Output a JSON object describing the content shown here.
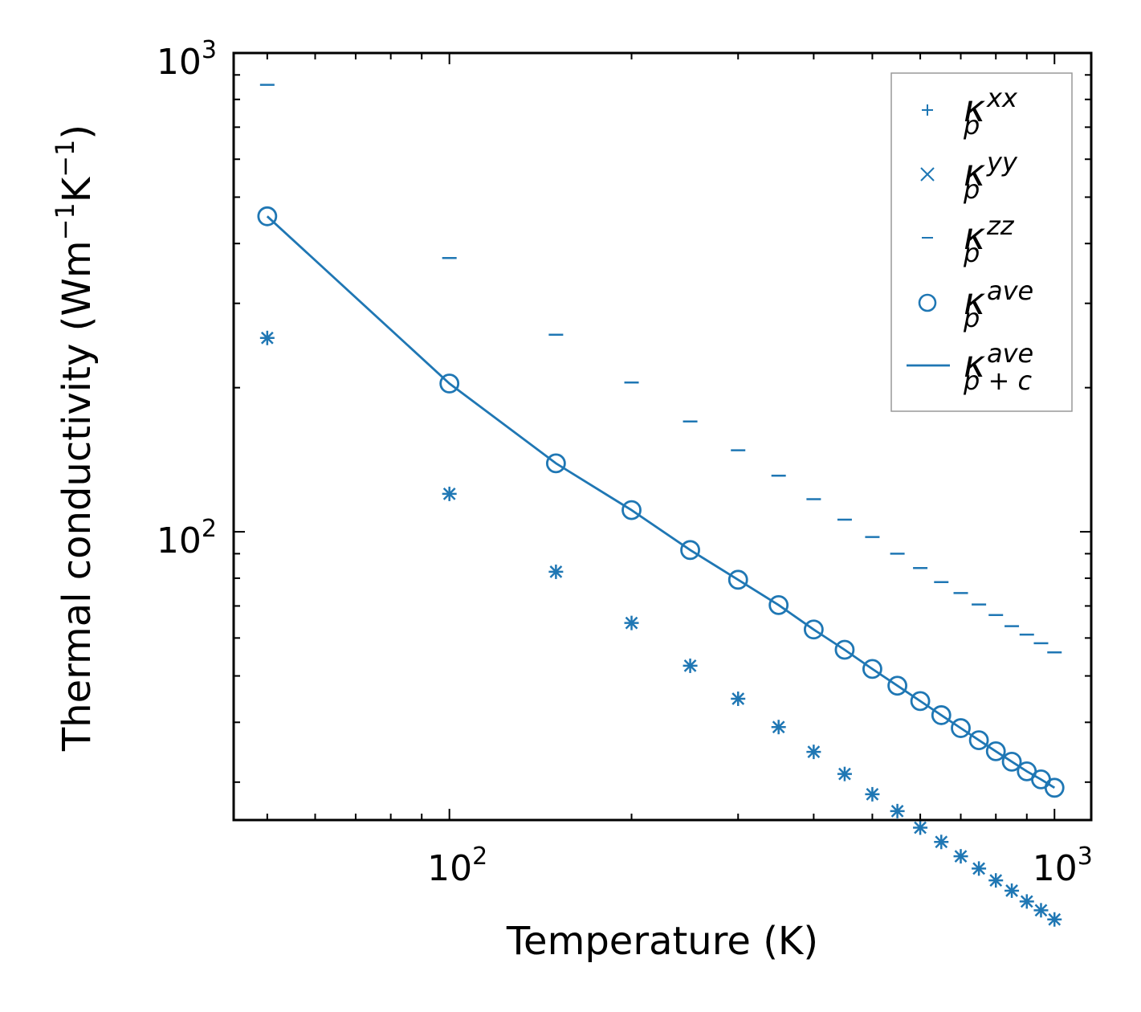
{
  "chart_data": {
    "type": "scatter",
    "scale": {
      "x": "log",
      "y": "log"
    },
    "xlim": [
      44,
      1150
    ],
    "ylim": [
      25,
      1000
    ],
    "xlabel": "Temperature (K)",
    "ylabel": {
      "text": "Thermal conductivity (Wm",
      "exp1": "−1",
      "mid": "K",
      "exp2": "−1",
      "end": ")"
    },
    "major_ticks": {
      "x": [
        {
          "value": 100,
          "base": "10",
          "exp": "2"
        },
        {
          "value": 1000,
          "base": "10",
          "exp": "3"
        }
      ],
      "y": [
        {
          "value": 100,
          "base": "10",
          "exp": "2"
        },
        {
          "value": 1000,
          "base": "10",
          "exp": "3"
        }
      ]
    },
    "color": "#1f77b4",
    "x": [
      50,
      100,
      150,
      200,
      250,
      300,
      350,
      400,
      450,
      500,
      550,
      600,
      650,
      700,
      750,
      800,
      850,
      900,
      950,
      1000
    ],
    "series": [
      {
        "name": "kxx",
        "marker": "plus",
        "legend": {
          "base": "κ",
          "sup": "xx",
          "sub": "p"
        },
        "values": [
          254,
          120,
          82.5,
          64.5,
          52.5,
          44.8,
          39.1,
          34.7,
          31.2,
          28.3,
          26.1,
          24.1,
          22.5,
          21.0,
          19.8,
          18.7,
          17.8,
          16.9,
          16.2,
          15.5
        ]
      },
      {
        "name": "kyy",
        "marker": "x",
        "legend": {
          "base": "κ",
          "sup": "yy",
          "sub": "p"
        },
        "values": [
          254,
          120,
          82.5,
          64.5,
          52.5,
          44.8,
          39.1,
          34.7,
          31.2,
          28.3,
          26.1,
          24.1,
          22.5,
          21.0,
          19.8,
          18.7,
          17.8,
          16.9,
          16.2,
          15.5
        ]
      },
      {
        "name": "kzz",
        "marker": "hline",
        "legend": {
          "base": "κ",
          "sup": "zz",
          "sub": "p"
        },
        "values": [
          858,
          373,
          258,
          205,
          170,
          148,
          131,
          117,
          106,
          97.5,
          90,
          84,
          78.5,
          74.5,
          70.5,
          67,
          63.5,
          61,
          58.5,
          56
        ]
      },
      {
        "name": "kave",
        "marker": "circle",
        "legend": {
          "base": "κ",
          "sup": "ave",
          "sub": "p"
        },
        "values": [
          456,
          204,
          139,
          111,
          91.6,
          79.4,
          70.3,
          62.5,
          56.7,
          51.7,
          47.7,
          44.3,
          41.4,
          38.9,
          36.7,
          34.8,
          33.1,
          31.6,
          30.4,
          29.2
        ]
      },
      {
        "name": "kave_pc",
        "marker": "line",
        "legend": {
          "base": "κ",
          "sup": "ave",
          "sub": "p + c"
        },
        "values": [
          456,
          204,
          139,
          111,
          91.6,
          79.4,
          70.3,
          62.5,
          56.7,
          51.7,
          47.7,
          44.3,
          41.4,
          38.9,
          36.7,
          34.8,
          33.1,
          31.6,
          30.4,
          29.2
        ]
      }
    ],
    "legend_position": "top-right"
  }
}
